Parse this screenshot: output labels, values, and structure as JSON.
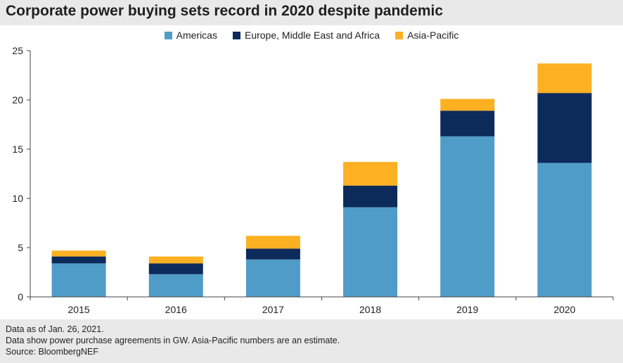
{
  "title": "Corporate power buying sets record in 2020 despite pandemic",
  "colors": {
    "americas": "#4f9cc8",
    "emea": "#0c2a5a",
    "apac": "#fdb022",
    "axis": "#444444"
  },
  "chart_data": {
    "type": "bar",
    "stacked": true,
    "title": "Corporate power buying sets record in 2020 despite pandemic",
    "xlabel": "",
    "ylabel": "",
    "ylim": [
      0,
      25
    ],
    "yticks": [
      0,
      5,
      10,
      15,
      20,
      25
    ],
    "categories": [
      "2015",
      "2016",
      "2017",
      "2018",
      "2019",
      "2020"
    ],
    "series": [
      {
        "name": "Americas",
        "color_key": "americas",
        "values": [
          3.4,
          2.3,
          3.8,
          9.1,
          16.3,
          13.6
        ]
      },
      {
        "name": "Europe, Middle East and Africa",
        "color_key": "emea",
        "values": [
          0.7,
          1.1,
          1.1,
          2.2,
          2.6,
          7.1
        ]
      },
      {
        "name": "Asia-Pacific",
        "color_key": "apac",
        "values": [
          0.6,
          0.7,
          1.3,
          2.4,
          1.2,
          3.0
        ]
      }
    ],
    "legend_position": "top-center"
  },
  "footnotes": {
    "line1": "Data as of Jan. 26, 2021.",
    "line2": "Data show power purchase agreements in GW. Asia-Pacific numbers are an estimate.",
    "line3": "Source: BloombergNEF"
  }
}
